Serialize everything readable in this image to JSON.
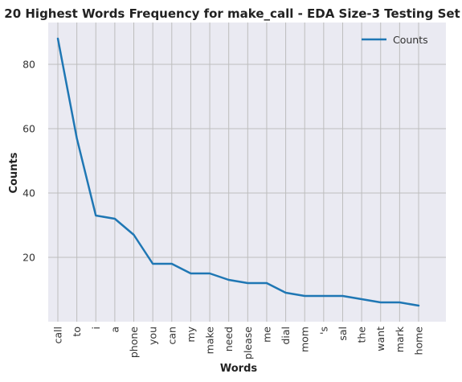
{
  "chart_data": {
    "type": "line",
    "title": "20 Highest Words Frequency for make_call - EDA Size-3 Testing Set",
    "xlabel": "Words",
    "ylabel": "Counts",
    "categories": [
      "call",
      "to",
      "i",
      "a",
      "phone",
      "you",
      "can",
      "my",
      "make",
      "need",
      "please",
      "me",
      "dial",
      "mom",
      "'s",
      "sal",
      "the",
      "want",
      "mark",
      "home"
    ],
    "series": [
      {
        "name": "Counts",
        "values": [
          88,
          57,
          33,
          32,
          27,
          18,
          18,
          15,
          15,
          13,
          12,
          12,
          9,
          8,
          8,
          8,
          7,
          6,
          6,
          5
        ]
      }
    ],
    "ylim": [
      0,
      93
    ],
    "yticks": [
      20,
      40,
      60,
      80
    ],
    "grid": true,
    "legend_position": "top-right",
    "line_color": "#1f77b4",
    "background_color": "#eaeaf2",
    "grid_color": "#bdbdbd"
  }
}
